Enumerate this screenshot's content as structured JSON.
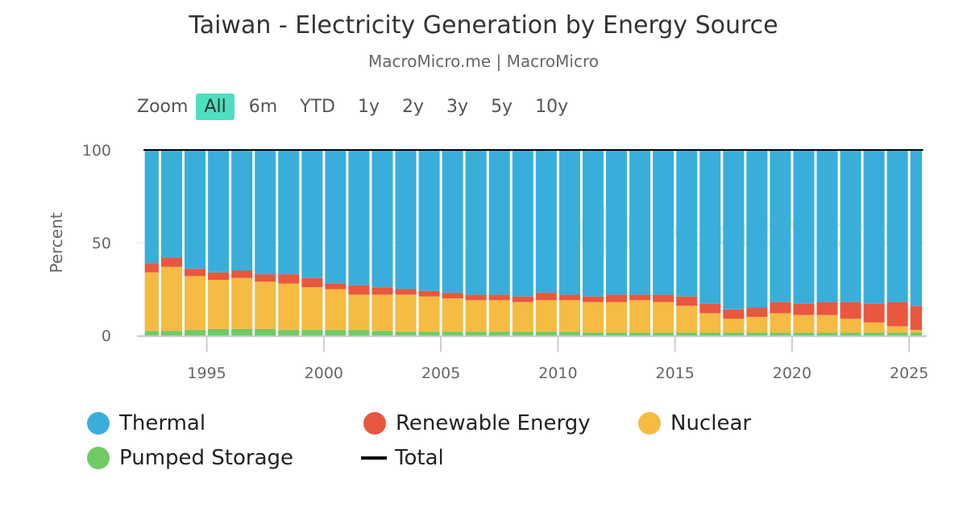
{
  "title": "Taiwan - Electricity Generation by Energy Source",
  "subtitle": "MacroMicro.me | MacroMicro",
  "watermark": "MacroMicro",
  "zoom": {
    "label": "Zoom",
    "buttons": [
      "All",
      "6m",
      "YTD",
      "1y",
      "2y",
      "3y",
      "5y",
      "10y"
    ],
    "active": "All"
  },
  "chart_data": {
    "type": "bar",
    "stacked": true,
    "ylabel": "Percent",
    "ylim": [
      0,
      100
    ],
    "yticks": [
      0,
      50,
      100
    ],
    "xlim": [
      1992.3,
      2025.6
    ],
    "xticks": [
      1995,
      2000,
      2005,
      2010,
      2015,
      2020,
      2025
    ],
    "grid": true,
    "legend_placement": "bottom",
    "x": [
      1992,
      1993,
      1994,
      1995,
      1996,
      1997,
      1998,
      1999,
      2000,
      2001,
      2002,
      2003,
      2004,
      2005,
      2006,
      2007,
      2008,
      2009,
      2010,
      2011,
      2012,
      2013,
      2014,
      2015,
      2016,
      2017,
      2018,
      2019,
      2020,
      2021,
      2022,
      2023,
      2024,
      2025
    ],
    "series": [
      {
        "name": "Pumped Storage",
        "color": "#6ecb63",
        "values": [
          2.5,
          2.5,
          3,
          3.5,
          3.5,
          3.5,
          3,
          3,
          3,
          3,
          2.5,
          2,
          2,
          2,
          2,
          2,
          2,
          2,
          2,
          1.5,
          1.5,
          1.5,
          1.5,
          1.5,
          1.5,
          1.5,
          1.5,
          1.5,
          1.5,
          1.5,
          1.5,
          1.5,
          1.5,
          1.5
        ]
      },
      {
        "name": "Nuclear",
        "color": "#f5bb43",
        "values": [
          31.5,
          34.5,
          29,
          26.5,
          27.5,
          25.5,
          25,
          23,
          22,
          19,
          19.5,
          20,
          19,
          18,
          17,
          17,
          16,
          17,
          17,
          16.5,
          16.5,
          17.5,
          16.5,
          14.5,
          10.5,
          7.5,
          8.5,
          10.5,
          9.5,
          9.5,
          7.5,
          5.5,
          3.5,
          1.5
        ]
      },
      {
        "name": "Renewable Energy",
        "color": "#e9573f",
        "values": [
          5,
          5,
          4,
          4,
          4,
          4,
          5,
          5,
          3,
          5,
          4,
          3,
          3,
          3,
          3,
          3,
          3,
          4,
          3,
          3,
          4,
          3,
          4,
          5,
          5,
          5,
          5,
          6,
          6,
          7,
          9,
          10,
          13,
          13
        ]
      },
      {
        "name": "Thermal",
        "color": "#3aaedb",
        "values": [
          61,
          58,
          64,
          66,
          65,
          67,
          67,
          69,
          72,
          73,
          74,
          75,
          76,
          77,
          78,
          78,
          79,
          77,
          78,
          79,
          78,
          78,
          78,
          79,
          83,
          86,
          85,
          82,
          83,
          82,
          82,
          83,
          82,
          84
        ]
      }
    ],
    "total": {
      "name": "Total",
      "color": "#000000",
      "value": 100
    }
  },
  "legend": [
    {
      "name": "Thermal",
      "color": "#3aaedb",
      "icon": "circle"
    },
    {
      "name": "Renewable Energy",
      "color": "#e9573f",
      "icon": "circle"
    },
    {
      "name": "Nuclear",
      "color": "#f5bb43",
      "icon": "circle"
    },
    {
      "name": "Pumped Storage",
      "color": "#6ecb63",
      "icon": "circle"
    },
    {
      "name": "Total",
      "color": "#000000",
      "icon": "line"
    }
  ]
}
